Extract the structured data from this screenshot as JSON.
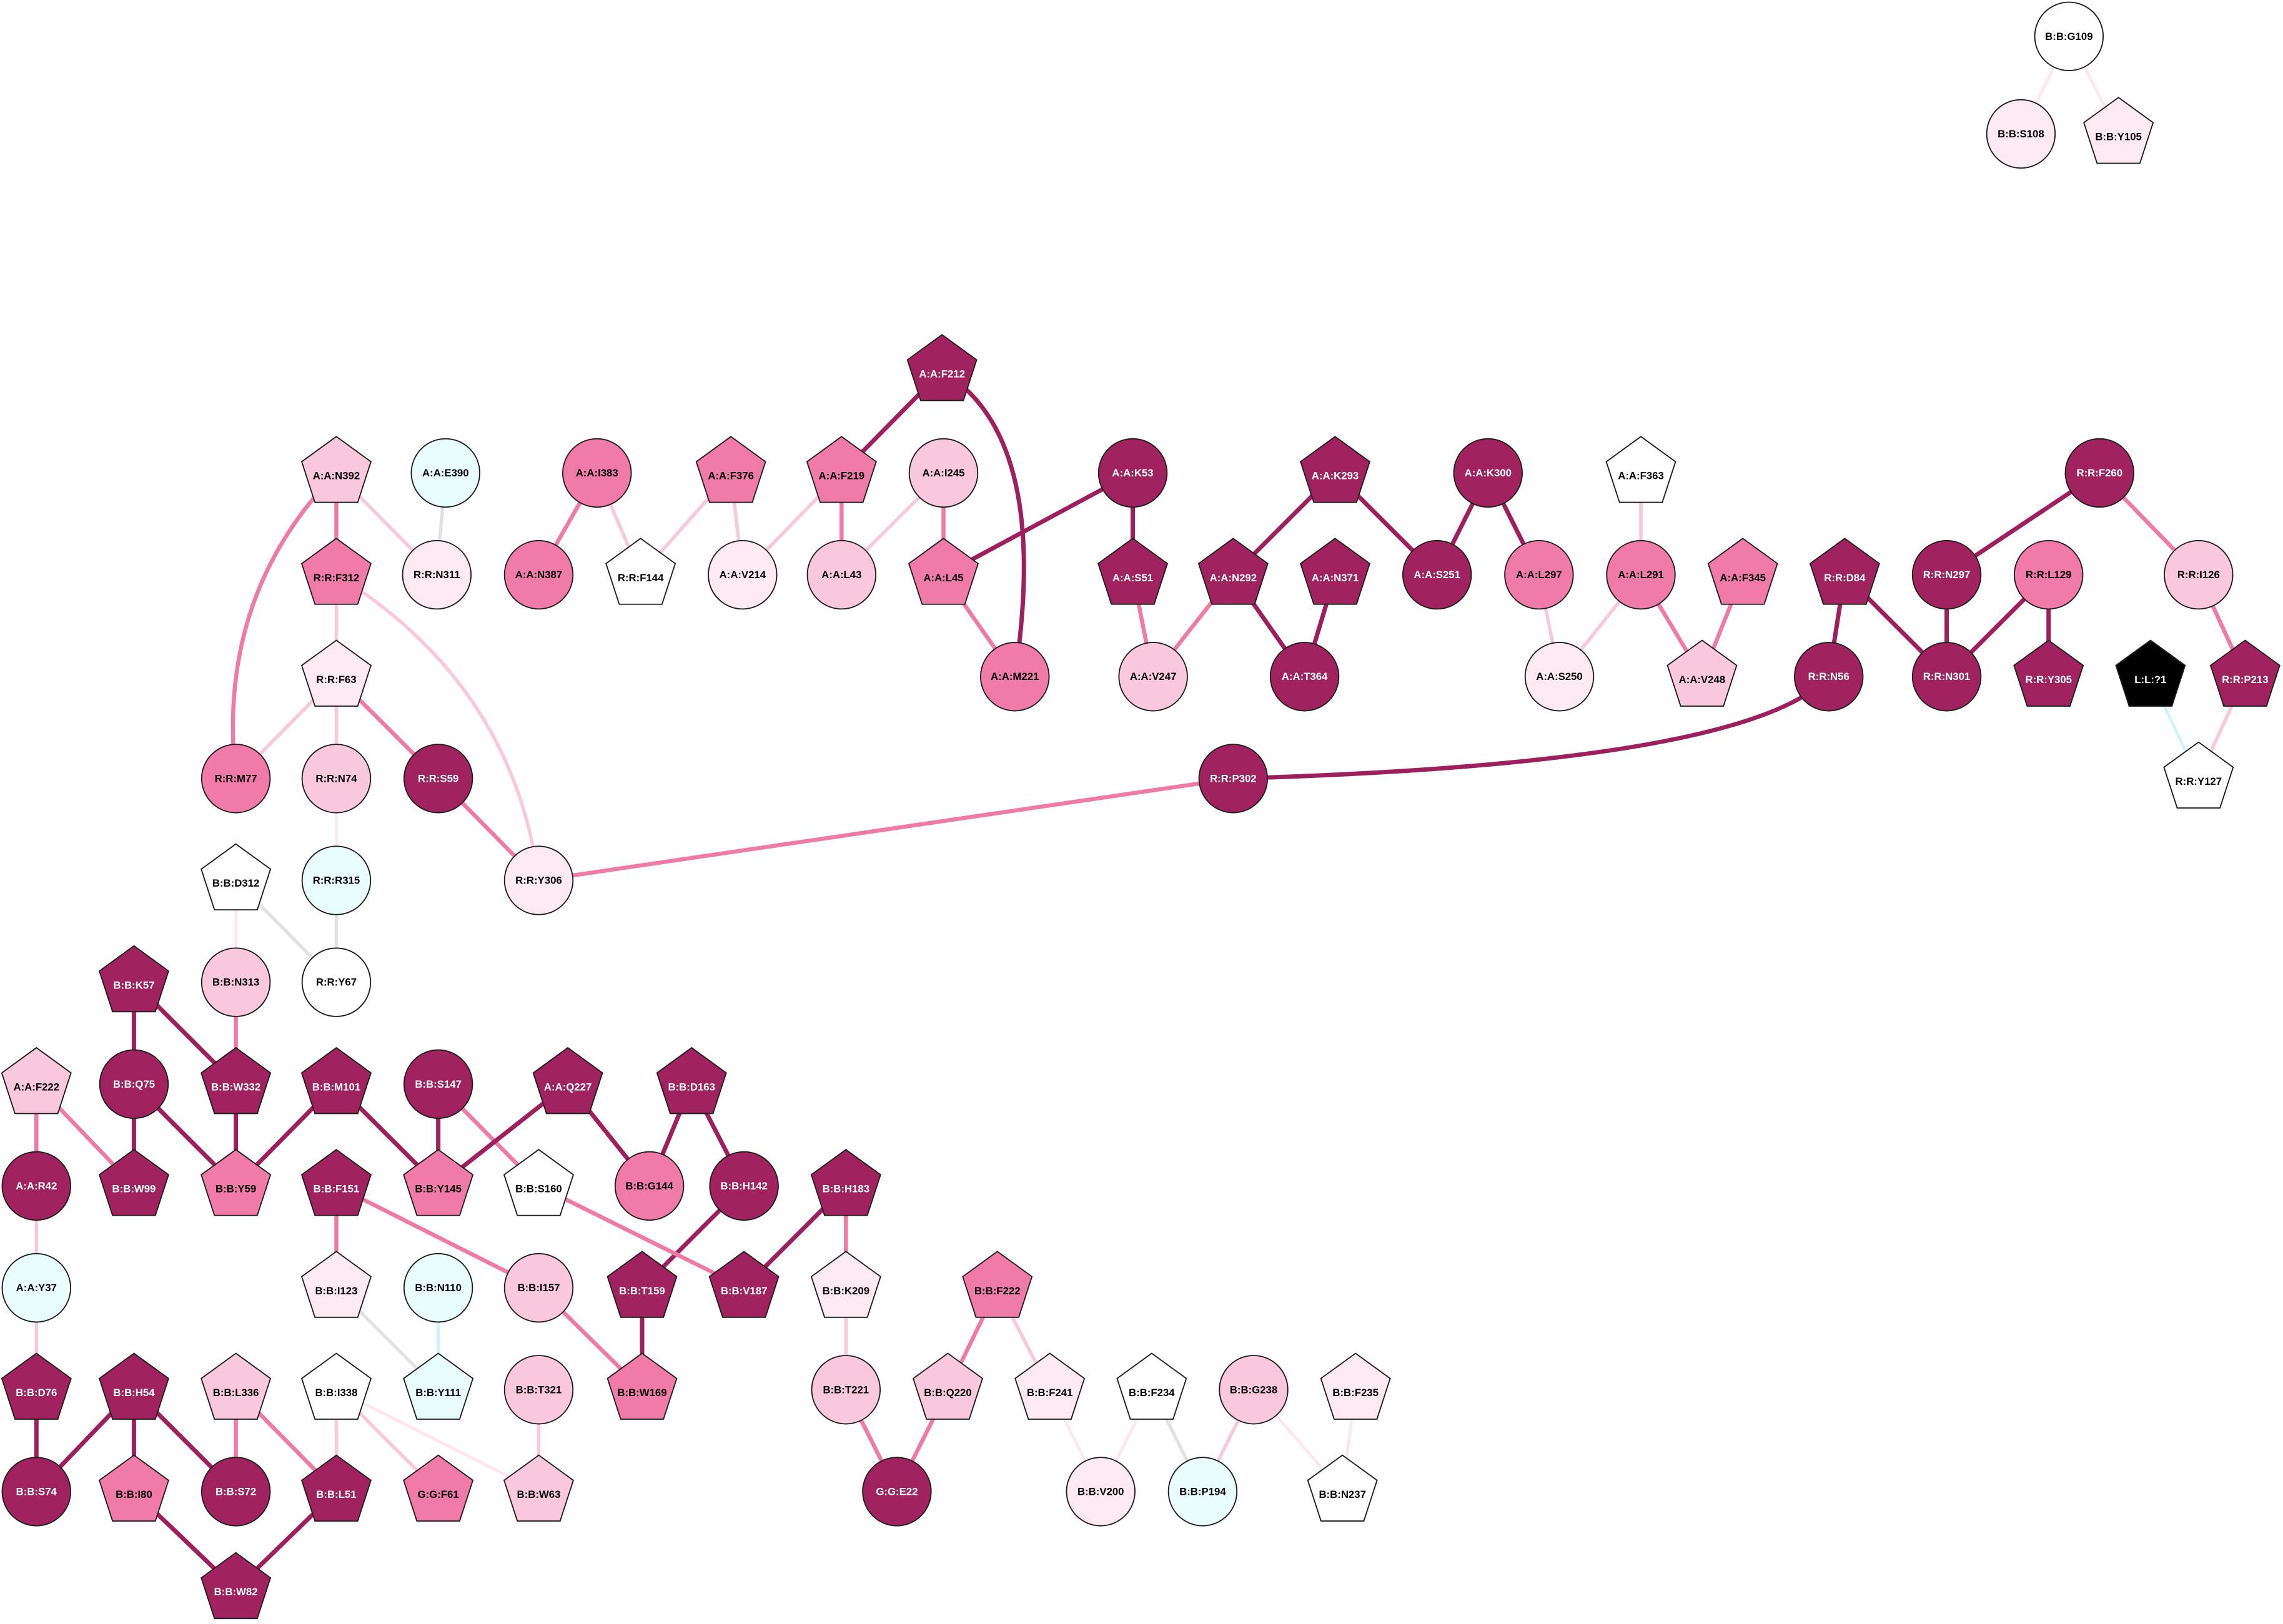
{
  "palette": {
    "node_fill": {
      "dark": "#a0235f",
      "medium": "#f07aa8",
      "light": "#fac8dc",
      "pale": "#fde9f1",
      "white": "#ffffff",
      "cyan": "#e9fdfd",
      "black": "#000000"
    },
    "edge_color": {
      "dark": "#9e1f5e",
      "medium": "#ee7aa6",
      "light": "#f8c8dc",
      "pale": "#fce6ef",
      "gray": "#e2e2e2",
      "cyan": "#ccf6f6"
    }
  },
  "nodes": [
    {
      "label": "B:B:G109",
      "shape": "circle",
      "fill": "white"
    },
    {
      "label": "B:B:S108",
      "shape": "circle",
      "fill": "pale"
    },
    {
      "label": "B:B:Y105",
      "shape": "pentagon",
      "fill": "pale"
    },
    {
      "label": "A:A:N392",
      "shape": "pentagon",
      "fill": "light"
    },
    {
      "label": "A:A:E390",
      "shape": "circle",
      "fill": "cyan"
    },
    {
      "label": "A:A:I383",
      "shape": "circle",
      "fill": "medium"
    },
    {
      "label": "A:A:F376",
      "shape": "pentagon",
      "fill": "medium"
    },
    {
      "label": "A:A:F219",
      "shape": "pentagon",
      "fill": "medium"
    },
    {
      "label": "A:A:I245",
      "shape": "circle",
      "fill": "light"
    },
    {
      "label": "A:A:F212",
      "shape": "pentagon",
      "fill": "dark"
    },
    {
      "label": "A:A:K53",
      "shape": "circle",
      "fill": "dark"
    },
    {
      "label": "A:A:K293",
      "shape": "pentagon",
      "fill": "dark"
    },
    {
      "label": "A:A:K300",
      "shape": "circle",
      "fill": "dark"
    },
    {
      "label": "A:A:F363",
      "shape": "pentagon",
      "fill": "white"
    },
    {
      "label": "R:R:F260",
      "shape": "circle",
      "fill": "dark"
    },
    {
      "label": "R:R:F312",
      "shape": "pentagon",
      "fill": "medium"
    },
    {
      "label": "R:R:N311",
      "shape": "circle",
      "fill": "pale"
    },
    {
      "label": "A:A:N387",
      "shape": "circle",
      "fill": "medium"
    },
    {
      "label": "R:R:F144",
      "shape": "pentagon",
      "fill": "white"
    },
    {
      "label": "A:A:V214",
      "shape": "circle",
      "fill": "pale"
    },
    {
      "label": "A:A:L43",
      "shape": "circle",
      "fill": "light"
    },
    {
      "label": "A:A:L45",
      "shape": "pentagon",
      "fill": "medium"
    },
    {
      "label": "A:A:S51",
      "shape": "pentagon",
      "fill": "dark"
    },
    {
      "label": "A:A:N292",
      "shape": "pentagon",
      "fill": "dark"
    },
    {
      "label": "A:A:N371",
      "shape": "pentagon",
      "fill": "dark"
    },
    {
      "label": "A:A:S251",
      "shape": "circle",
      "fill": "dark"
    },
    {
      "label": "A:A:L297",
      "shape": "circle",
      "fill": "medium"
    },
    {
      "label": "A:A:L291",
      "shape": "circle",
      "fill": "medium"
    },
    {
      "label": "A:A:F345",
      "shape": "pentagon",
      "fill": "medium"
    },
    {
      "label": "R:R:D84",
      "shape": "pentagon",
      "fill": "dark"
    },
    {
      "label": "R:R:N297",
      "shape": "circle",
      "fill": "dark"
    },
    {
      "label": "R:R:L129",
      "shape": "circle",
      "fill": "medium"
    },
    {
      "label": "R:R:I126",
      "shape": "circle",
      "fill": "light"
    },
    {
      "label": "R:R:F63",
      "shape": "pentagon",
      "fill": "pale"
    },
    {
      "label": "A:A:M221",
      "shape": "circle",
      "fill": "medium"
    },
    {
      "label": "A:A:V247",
      "shape": "circle",
      "fill": "light"
    },
    {
      "label": "A:A:T364",
      "shape": "circle",
      "fill": "dark"
    },
    {
      "label": "A:A:S250",
      "shape": "circle",
      "fill": "pale"
    },
    {
      "label": "A:A:V248",
      "shape": "pentagon",
      "fill": "light"
    },
    {
      "label": "R:R:N56",
      "shape": "circle",
      "fill": "dark"
    },
    {
      "label": "R:R:N301",
      "shape": "circle",
      "fill": "dark"
    },
    {
      "label": "R:R:Y305",
      "shape": "pentagon",
      "fill": "dark"
    },
    {
      "label": "L:L:?1",
      "shape": "pentagon",
      "fill": "black"
    },
    {
      "label": "R:R:P213",
      "shape": "pentagon",
      "fill": "dark"
    },
    {
      "label": "R:R:M77",
      "shape": "circle",
      "fill": "medium"
    },
    {
      "label": "R:R:N74",
      "shape": "circle",
      "fill": "light"
    },
    {
      "label": "R:R:S59",
      "shape": "circle",
      "fill": "dark"
    },
    {
      "label": "R:R:P302",
      "shape": "circle",
      "fill": "dark"
    },
    {
      "label": "R:R:Y127",
      "shape": "pentagon",
      "fill": "white"
    },
    {
      "label": "B:B:D312",
      "shape": "pentagon",
      "fill": "white"
    },
    {
      "label": "R:R:R315",
      "shape": "circle",
      "fill": "cyan"
    },
    {
      "label": "R:R:Y306",
      "shape": "circle",
      "fill": "pale"
    },
    {
      "label": "B:B:K57",
      "shape": "pentagon",
      "fill": "dark"
    },
    {
      "label": "B:B:N313",
      "shape": "circle",
      "fill": "light"
    },
    {
      "label": "R:R:Y67",
      "shape": "circle",
      "fill": "white"
    },
    {
      "label": "A:A:F222",
      "shape": "pentagon",
      "fill": "light"
    },
    {
      "label": "B:B:Q75",
      "shape": "circle",
      "fill": "dark"
    },
    {
      "label": "B:B:W332",
      "shape": "pentagon",
      "fill": "dark"
    },
    {
      "label": "B:B:M101",
      "shape": "pentagon",
      "fill": "dark"
    },
    {
      "label": "B:B:S147",
      "shape": "circle",
      "fill": "dark"
    },
    {
      "label": "A:A:Q227",
      "shape": "pentagon",
      "fill": "dark"
    },
    {
      "label": "B:B:D163",
      "shape": "pentagon",
      "fill": "dark"
    },
    {
      "label": "A:A:R42",
      "shape": "circle",
      "fill": "dark"
    },
    {
      "label": "B:B:W99",
      "shape": "pentagon",
      "fill": "dark"
    },
    {
      "label": "B:B:Y59",
      "shape": "pentagon",
      "fill": "medium"
    },
    {
      "label": "B:B:F151",
      "shape": "pentagon",
      "fill": "dark"
    },
    {
      "label": "B:B:Y145",
      "shape": "pentagon",
      "fill": "medium"
    },
    {
      "label": "B:B:S160",
      "shape": "pentagon",
      "fill": "white"
    },
    {
      "label": "B:B:G144",
      "shape": "circle",
      "fill": "medium"
    },
    {
      "label": "B:B:H142",
      "shape": "circle",
      "fill": "dark"
    },
    {
      "label": "B:B:H183",
      "shape": "pentagon",
      "fill": "dark"
    },
    {
      "label": "A:A:Y37",
      "shape": "circle",
      "fill": "cyan"
    },
    {
      "label": "B:B:I123",
      "shape": "pentagon",
      "fill": "pale"
    },
    {
      "label": "B:B:N110",
      "shape": "circle",
      "fill": "cyan"
    },
    {
      "label": "B:B:I157",
      "shape": "circle",
      "fill": "light"
    },
    {
      "label": "B:B:T159",
      "shape": "pentagon",
      "fill": "dark"
    },
    {
      "label": "B:B:V187",
      "shape": "pentagon",
      "fill": "dark"
    },
    {
      "label": "B:B:K209",
      "shape": "pentagon",
      "fill": "pale"
    },
    {
      "label": "B:B:F222",
      "shape": "pentagon",
      "fill": "medium"
    },
    {
      "label": "B:B:D76",
      "shape": "pentagon",
      "fill": "dark"
    },
    {
      "label": "B:B:H54",
      "shape": "pentagon",
      "fill": "dark"
    },
    {
      "label": "B:B:L336",
      "shape": "pentagon",
      "fill": "light"
    },
    {
      "label": "B:B:I338",
      "shape": "pentagon",
      "fill": "white"
    },
    {
      "label": "B:B:Y111",
      "shape": "pentagon",
      "fill": "cyan"
    },
    {
      "label": "B:B:T321",
      "shape": "circle",
      "fill": "light"
    },
    {
      "label": "B:B:W169",
      "shape": "pentagon",
      "fill": "medium"
    },
    {
      "label": "B:B:T221",
      "shape": "circle",
      "fill": "light"
    },
    {
      "label": "B:B:Q220",
      "shape": "pentagon",
      "fill": "light"
    },
    {
      "label": "B:B:F241",
      "shape": "pentagon",
      "fill": "pale"
    },
    {
      "label": "B:B:F234",
      "shape": "pentagon",
      "fill": "white"
    },
    {
      "label": "B:B:G238",
      "shape": "circle",
      "fill": "light"
    },
    {
      "label": "B:B:F235",
      "shape": "pentagon",
      "fill": "pale"
    },
    {
      "label": "B:B:S74",
      "shape": "circle",
      "fill": "dark"
    },
    {
      "label": "B:B:I80",
      "shape": "pentagon",
      "fill": "medium"
    },
    {
      "label": "B:B:S72",
      "shape": "circle",
      "fill": "dark"
    },
    {
      "label": "B:B:L51",
      "shape": "pentagon",
      "fill": "dark"
    },
    {
      "label": "G:G:F61",
      "shape": "pentagon",
      "fill": "medium"
    },
    {
      "label": "B:B:W63",
      "shape": "pentagon",
      "fill": "light"
    },
    {
      "label": "G:G:E22",
      "shape": "circle",
      "fill": "dark"
    },
    {
      "label": "B:B:V200",
      "shape": "circle",
      "fill": "pale"
    },
    {
      "label": "B:B:P194",
      "shape": "circle",
      "fill": "cyan"
    },
    {
      "label": "B:B:N237",
      "shape": "pentagon",
      "fill": "white"
    },
    {
      "label": "B:B:W82",
      "shape": "pentagon",
      "fill": "dark"
    }
  ],
  "edges": [
    {
      "from": "B:B:G109",
      "to": "B:B:S108",
      "tier": "pale"
    },
    {
      "from": "B:B:G109",
      "to": "B:B:Y105",
      "tier": "pale"
    },
    {
      "from": "A:A:N392",
      "to": "R:R:F312",
      "tier": "medium"
    },
    {
      "from": "A:A:N392",
      "to": "R:R:M77",
      "tier": "medium"
    },
    {
      "from": "A:A:N392",
      "to": "R:R:N311",
      "tier": "light"
    },
    {
      "from": "A:A:E390",
      "to": "R:R:N311",
      "tier": "gray"
    },
    {
      "from": "A:A:I383",
      "to": "A:A:N387",
      "tier": "medium"
    },
    {
      "from": "A:A:I383",
      "to": "R:R:F144",
      "tier": "light"
    },
    {
      "from": "A:A:F376",
      "to": "R:R:F144",
      "tier": "light"
    },
    {
      "from": "A:A:F376",
      "to": "A:A:V214",
      "tier": "light"
    },
    {
      "from": "A:A:F219",
      "to": "A:A:V214",
      "tier": "light"
    },
    {
      "from": "A:A:F219",
      "to": "A:A:L43",
      "tier": "medium"
    },
    {
      "from": "A:A:F212",
      "to": "A:A:F219",
      "tier": "dark"
    },
    {
      "from": "A:A:F212",
      "to": "A:A:M221",
      "tier": "dark"
    },
    {
      "from": "A:A:I245",
      "to": "A:A:L43",
      "tier": "light"
    },
    {
      "from": "A:A:I245",
      "to": "A:A:L45",
      "tier": "medium"
    },
    {
      "from": "A:A:K53",
      "to": "A:A:L45",
      "tier": "dark"
    },
    {
      "from": "A:A:L45",
      "to": "A:A:M221",
      "tier": "medium"
    },
    {
      "from": "A:A:K53",
      "to": "A:A:S51",
      "tier": "dark"
    },
    {
      "from": "A:A:S51",
      "to": "A:A:V247",
      "tier": "medium"
    },
    {
      "from": "A:A:K293",
      "to": "A:A:N292",
      "tier": "dark"
    },
    {
      "from": "A:A:K293",
      "to": "A:A:S251",
      "tier": "dark"
    },
    {
      "from": "A:A:N292",
      "to": "A:A:V247",
      "tier": "medium"
    },
    {
      "from": "A:A:N292",
      "to": "A:A:T364",
      "tier": "dark"
    },
    {
      "from": "A:A:N371",
      "to": "A:A:T364",
      "tier": "dark"
    },
    {
      "from": "A:A:K300",
      "to": "A:A:S251",
      "tier": "dark"
    },
    {
      "from": "A:A:K300",
      "to": "A:A:L297",
      "tier": "dark"
    },
    {
      "from": "A:A:L297",
      "to": "A:A:S250",
      "tier": "light"
    },
    {
      "from": "A:A:F363",
      "to": "A:A:L291",
      "tier": "light"
    },
    {
      "from": "A:A:L291",
      "to": "A:A:S250",
      "tier": "light"
    },
    {
      "from": "A:A:L291",
      "to": "A:A:V248",
      "tier": "medium"
    },
    {
      "from": "A:A:F345",
      "to": "A:A:V248",
      "tier": "medium"
    },
    {
      "from": "R:R:D84",
      "to": "R:R:N56",
      "tier": "dark"
    },
    {
      "from": "R:R:D84",
      "to": "R:R:N301",
      "tier": "dark"
    },
    {
      "from": "R:R:N297",
      "to": "R:R:N301",
      "tier": "dark"
    },
    {
      "from": "R:R:F260",
      "to": "R:R:N297",
      "tier": "dark"
    },
    {
      "from": "R:R:F260",
      "to": "R:R:I126",
      "tier": "medium"
    },
    {
      "from": "R:R:L129",
      "to": "R:R:N301",
      "tier": "dark"
    },
    {
      "from": "R:R:L129",
      "to": "R:R:Y305",
      "tier": "dark"
    },
    {
      "from": "R:R:I126",
      "to": "R:R:P213",
      "tier": "medium"
    },
    {
      "from": "R:R:P213",
      "to": "R:R:Y127",
      "tier": "light"
    },
    {
      "from": "L:L:?1",
      "to": "R:R:Y127",
      "tier": "cyan"
    },
    {
      "from": "R:R:N56",
      "to": "R:R:P302",
      "tier": "dark"
    },
    {
      "from": "R:R:P302",
      "to": "R:R:Y306",
      "tier": "medium"
    },
    {
      "from": "R:R:F312",
      "to": "R:R:F63",
      "tier": "light"
    },
    {
      "from": "R:R:F312",
      "to": "R:R:Y306",
      "tier": "light"
    },
    {
      "from": "R:R:F63",
      "to": "R:R:M77",
      "tier": "light"
    },
    {
      "from": "R:R:F63",
      "to": "R:R:N74",
      "tier": "light"
    },
    {
      "from": "R:R:F63",
      "to": "R:R:S59",
      "tier": "medium"
    },
    {
      "from": "R:R:S59",
      "to": "R:R:Y306",
      "tier": "medium"
    },
    {
      "from": "R:R:N74",
      "to": "R:R:R315",
      "tier": "pale"
    },
    {
      "from": "R:R:R315",
      "to": "R:R:Y67",
      "tier": "gray"
    },
    {
      "from": "B:B:D312",
      "to": "R:R:Y67",
      "tier": "gray"
    },
    {
      "from": "B:B:D312",
      "to": "B:B:N313",
      "tier": "pale"
    },
    {
      "from": "B:B:N313",
      "to": "B:B:W332",
      "tier": "medium"
    },
    {
      "from": "B:B:K57",
      "to": "B:B:Q75",
      "tier": "dark"
    },
    {
      "from": "B:B:K57",
      "to": "B:B:W332",
      "tier": "dark"
    },
    {
      "from": "B:B:Q75",
      "to": "B:B:W99",
      "tier": "dark"
    },
    {
      "from": "B:B:Q75",
      "to": "B:B:Y59",
      "tier": "dark"
    },
    {
      "from": "B:B:W332",
      "to": "B:B:Y59",
      "tier": "dark"
    },
    {
      "from": "B:B:M101",
      "to": "B:B:Y59",
      "tier": "dark"
    },
    {
      "from": "B:B:M101",
      "to": "B:B:Y145",
      "tier": "dark"
    },
    {
      "from": "B:B:S147",
      "to": "B:B:Y145",
      "tier": "dark"
    },
    {
      "from": "B:B:S147",
      "to": "B:B:S160",
      "tier": "medium"
    },
    {
      "from": "A:A:Q227",
      "to": "B:B:Y145",
      "tier": "dark"
    },
    {
      "from": "A:A:Q227",
      "to": "B:B:G144",
      "tier": "dark"
    },
    {
      "from": "B:B:D163",
      "to": "B:B:G144",
      "tier": "dark"
    },
    {
      "from": "B:B:D163",
      "to": "B:B:H142",
      "tier": "dark"
    },
    {
      "from": "B:B:H142",
      "to": "B:B:T159",
      "tier": "dark"
    },
    {
      "from": "B:B:S160",
      "to": "B:B:V187",
      "tier": "medium"
    },
    {
      "from": "B:B:H183",
      "to": "B:B:V187",
      "tier": "dark"
    },
    {
      "from": "B:B:H183",
      "to": "B:B:K209",
      "tier": "medium"
    },
    {
      "from": "A:A:F222",
      "to": "A:A:R42",
      "tier": "medium"
    },
    {
      "from": "A:A:F222",
      "to": "B:B:W99",
      "tier": "medium"
    },
    {
      "from": "A:A:R42",
      "to": "A:A:Y37",
      "tier": "light"
    },
    {
      "from": "A:A:Y37",
      "to": "B:B:D76",
      "tier": "light"
    },
    {
      "from": "B:B:D76",
      "to": "B:B:S74",
      "tier": "dark"
    },
    {
      "from": "B:B:H54",
      "to": "B:B:S74",
      "tier": "dark"
    },
    {
      "from": "B:B:H54",
      "to": "B:B:I80",
      "tier": "dark"
    },
    {
      "from": "B:B:H54",
      "to": "B:B:S72",
      "tier": "dark"
    },
    {
      "from": "B:B:I80",
      "to": "B:B:W82",
      "tier": "dark"
    },
    {
      "from": "B:B:W82",
      "to": "B:B:L51",
      "tier": "dark"
    },
    {
      "from": "B:B:L336",
      "to": "B:B:S72",
      "tier": "medium"
    },
    {
      "from": "B:B:L336",
      "to": "B:B:L51",
      "tier": "medium"
    },
    {
      "from": "B:B:I338",
      "to": "B:B:L51",
      "tier": "light"
    },
    {
      "from": "B:B:I338",
      "to": "G:G:F61",
      "tier": "light"
    },
    {
      "from": "B:B:I338",
      "to": "B:B:W63",
      "tier": "pale"
    },
    {
      "from": "B:B:I123",
      "to": "B:B:Y111",
      "tier": "gray"
    },
    {
      "from": "B:B:N110",
      "to": "B:B:Y111",
      "tier": "cyan"
    },
    {
      "from": "B:B:F151",
      "to": "B:B:I123",
      "tier": "medium"
    },
    {
      "from": "B:B:F151",
      "to": "B:B:I157",
      "tier": "medium"
    },
    {
      "from": "B:B:I157",
      "to": "B:B:W169",
      "tier": "medium"
    },
    {
      "from": "B:B:T159",
      "to": "B:B:W169",
      "tier": "dark"
    },
    {
      "from": "B:B:T321",
      "to": "B:B:W63",
      "tier": "light"
    },
    {
      "from": "B:B:K209",
      "to": "B:B:T221",
      "tier": "light"
    },
    {
      "from": "B:B:T221",
      "to": "G:G:E22",
      "tier": "medium"
    },
    {
      "from": "B:B:F222",
      "to": "B:B:Q220",
      "tier": "medium"
    },
    {
      "from": "B:B:F222",
      "to": "B:B:F241",
      "tier": "light"
    },
    {
      "from": "B:B:Q220",
      "to": "G:G:E22",
      "tier": "medium"
    },
    {
      "from": "B:B:F241",
      "to": "B:B:V200",
      "tier": "pale"
    },
    {
      "from": "B:B:F234",
      "to": "B:B:V200",
      "tier": "pale"
    },
    {
      "from": "B:B:F234",
      "to": "B:B:P194",
      "tier": "gray"
    },
    {
      "from": "B:B:G238",
      "to": "B:B:P194",
      "tier": "light"
    },
    {
      "from": "B:B:G238",
      "to": "B:B:N237",
      "tier": "pale"
    },
    {
      "from": "B:B:F235",
      "to": "B:B:N237",
      "tier": "pale"
    }
  ]
}
